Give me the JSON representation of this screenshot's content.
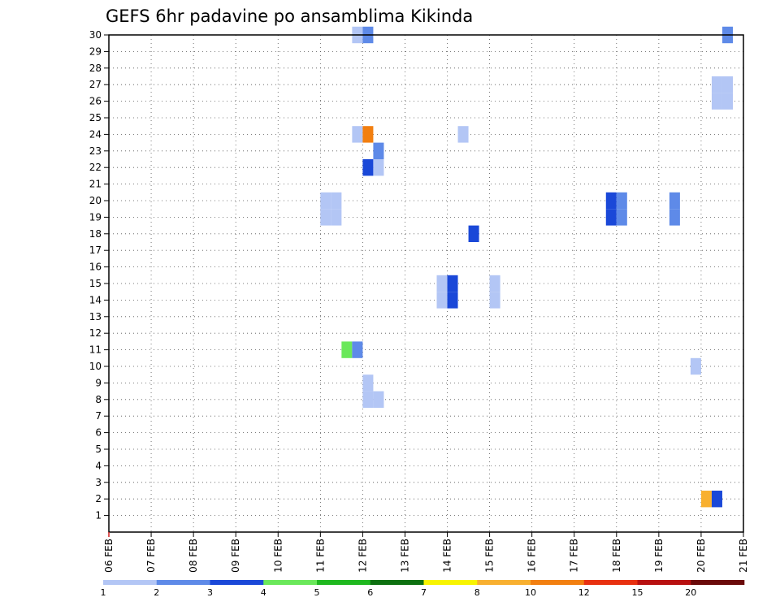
{
  "chart_data": {
    "type": "heatmap",
    "title": "GEFS 6hr padavine po ansamblima Kikinda",
    "xlabel": "",
    "ylabel": "",
    "x_tick_labels": [
      "06 FEB",
      "07 FEB",
      "08 FEB",
      "09 FEB",
      "10 FEB",
      "11 FEB",
      "12 FEB",
      "13 FEB",
      "14 FEB",
      "15 FEB",
      "16 FEB",
      "17 FEB",
      "18 FEB",
      "19 FEB",
      "20 FEB",
      "21 FEB"
    ],
    "y_tick_labels": [
      "1",
      "2",
      "3",
      "4",
      "5",
      "6",
      "7",
      "8",
      "9",
      "10",
      "11",
      "12",
      "13",
      "14",
      "15",
      "16",
      "17",
      "18",
      "19",
      "20",
      "21",
      "22",
      "23",
      "24",
      "25",
      "26",
      "27",
      "28",
      "29",
      "30"
    ],
    "xlim_days": [
      6,
      21
    ],
    "ylim_members": [
      0,
      30
    ],
    "grid": true,
    "step_days": 0.25,
    "colorbar": {
      "labels": [
        "1",
        "2",
        "3",
        "4",
        "5",
        "6",
        "7",
        "8",
        "10",
        "12",
        "15",
        "20"
      ],
      "colors": [
        "#b3c6f5",
        "#5e8ae8",
        "#1a48d8",
        "#6ae85a",
        "#1fb81f",
        "#0d7010",
        "#f8f400",
        "#f8b030",
        "#f27f10",
        "#e83010",
        "#b81010",
        "#6a0a0a"
      ]
    },
    "cells": [
      {
        "day": 11.75,
        "member": 30,
        "value": 1.5
      },
      {
        "day": 12.0,
        "member": 30,
        "value": 2.5
      },
      {
        "day": 20.5,
        "member": 30,
        "value": 2.5
      },
      {
        "day": 20.25,
        "member": 27,
        "value": 1.5
      },
      {
        "day": 20.5,
        "member": 27,
        "value": 1.5
      },
      {
        "day": 20.25,
        "member": 26,
        "value": 1.5
      },
      {
        "day": 20.5,
        "member": 26,
        "value": 1.5
      },
      {
        "day": 11.75,
        "member": 24,
        "value": 1.5
      },
      {
        "day": 12.0,
        "member": 24,
        "value": 11
      },
      {
        "day": 14.25,
        "member": 24,
        "value": 1.5
      },
      {
        "day": 12.25,
        "member": 23,
        "value": 2.5
      },
      {
        "day": 12.0,
        "member": 22,
        "value": 3.5
      },
      {
        "day": 12.25,
        "member": 22,
        "value": 1.5
      },
      {
        "day": 11.0,
        "member": 20,
        "value": 1.5
      },
      {
        "day": 11.25,
        "member": 20,
        "value": 1.5
      },
      {
        "day": 17.75,
        "member": 20,
        "value": 3.5
      },
      {
        "day": 18.0,
        "member": 20,
        "value": 2.5
      },
      {
        "day": 19.25,
        "member": 20,
        "value": 2.5
      },
      {
        "day": 11.0,
        "member": 19,
        "value": 1.5
      },
      {
        "day": 11.25,
        "member": 19,
        "value": 1.5
      },
      {
        "day": 17.75,
        "member": 19,
        "value": 3.5
      },
      {
        "day": 18.0,
        "member": 19,
        "value": 2.5
      },
      {
        "day": 19.25,
        "member": 19,
        "value": 2.5
      },
      {
        "day": 14.5,
        "member": 18,
        "value": 3.5
      },
      {
        "day": 13.75,
        "member": 15,
        "value": 1.5
      },
      {
        "day": 14.0,
        "member": 15,
        "value": 3.5
      },
      {
        "day": 15.0,
        "member": 15,
        "value": 1.5
      },
      {
        "day": 13.75,
        "member": 14,
        "value": 1.5
      },
      {
        "day": 14.0,
        "member": 14,
        "value": 3.5
      },
      {
        "day": 15.0,
        "member": 14,
        "value": 1.5
      },
      {
        "day": 11.5,
        "member": 11,
        "value": 4.5
      },
      {
        "day": 11.75,
        "member": 11,
        "value": 2.5
      },
      {
        "day": 19.75,
        "member": 10,
        "value": 1.5
      },
      {
        "day": 12.0,
        "member": 9,
        "value": 1.5
      },
      {
        "day": 12.0,
        "member": 8,
        "value": 1.5
      },
      {
        "day": 12.25,
        "member": 8,
        "value": 1.5
      },
      {
        "day": 20.0,
        "member": 2,
        "value": 9
      },
      {
        "day": 20.25,
        "member": 2,
        "value": 3.5
      }
    ]
  }
}
